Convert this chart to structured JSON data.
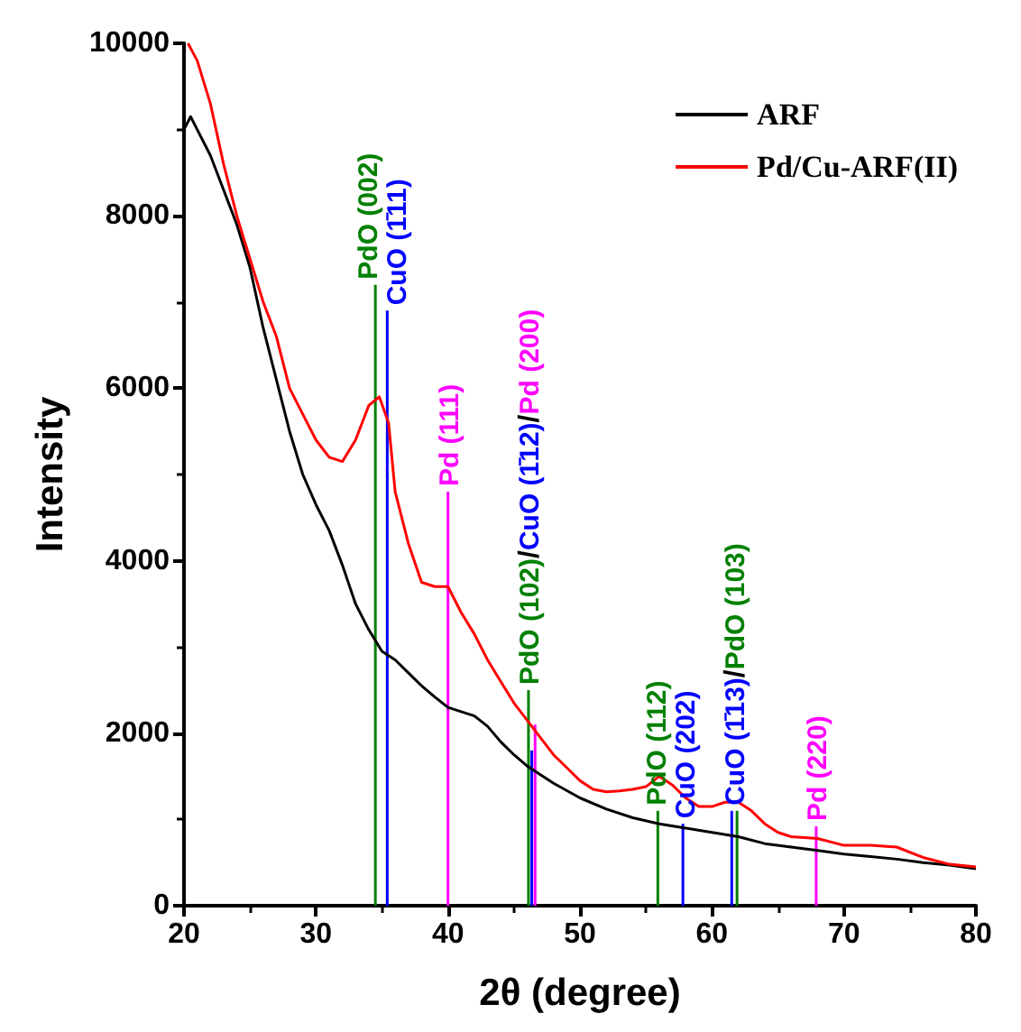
{
  "chart_data": {
    "type": "line",
    "xlabel": "2θ (degree)",
    "ylabel": "Intensity",
    "xlim": [
      20,
      80
    ],
    "xticks": [
      20,
      30,
      40,
      50,
      60,
      70,
      80
    ],
    "ylim": [
      0,
      10000
    ],
    "yticks": [
      0,
      {
        "value": 2000,
        "label": "2000"
      },
      {
        "value": 4000,
        "label": "4000"
      },
      {
        "value": 6000,
        "label": "6000"
      },
      {
        "value": 8000,
        "label": "8000"
      },
      {
        "value": 10000,
        "label": "10000"
      }
    ],
    "grid": false,
    "legend": "top right",
    "marker": "none",
    "line_style": "solid",
    "series": [
      {
        "name": "ARF",
        "color": "#000000",
        "x": [
          20,
          20.5,
          21,
          22,
          23,
          24,
          25,
          26,
          27,
          28,
          29,
          30,
          31,
          32,
          33,
          34,
          35,
          36,
          37,
          38,
          39,
          40,
          41,
          42,
          43,
          44,
          45,
          46,
          47,
          48,
          50,
          52,
          54,
          56,
          58,
          60,
          62,
          64,
          66,
          68,
          70,
          72,
          74,
          76,
          78,
          80
        ],
        "values": [
          9000,
          9150,
          9000,
          8700,
          8300,
          7900,
          7400,
          6700,
          6100,
          5500,
          5000,
          4650,
          4350,
          3950,
          3500,
          3200,
          2950,
          2850,
          2700,
          2550,
          2420,
          2300,
          2250,
          2200,
          2080,
          1900,
          1750,
          1620,
          1520,
          1420,
          1250,
          1120,
          1020,
          950,
          900,
          850,
          800,
          720,
          680,
          640,
          600,
          570,
          540,
          500,
          470,
          430
        ]
      },
      {
        "name": "Pd/Cu-ARF(II)",
        "color": "#ff0000",
        "x": [
          20.3,
          21,
          22,
          23,
          24,
          25,
          26,
          27,
          28,
          29,
          30,
          31,
          32,
          33,
          34,
          34.8,
          35.5,
          36,
          37,
          38,
          39,
          40,
          41,
          42,
          43,
          44,
          45,
          46,
          47,
          48,
          49,
          50,
          51,
          52,
          53,
          54,
          55,
          56,
          57,
          58,
          59,
          60,
          61,
          62,
          63,
          64,
          65,
          66,
          68,
          70,
          72,
          74,
          76,
          78,
          80
        ],
        "values": [
          10000,
          9800,
          9300,
          8600,
          8000,
          7500,
          7000,
          6600,
          6000,
          5700,
          5400,
          5200,
          5150,
          5400,
          5800,
          5900,
          5600,
          4800,
          4200,
          3750,
          3700,
          3700,
          3400,
          3150,
          2850,
          2600,
          2350,
          2150,
          1950,
          1750,
          1600,
          1450,
          1350,
          1320,
          1330,
          1350,
          1380,
          1500,
          1400,
          1250,
          1150,
          1150,
          1200,
          1200,
          1100,
          950,
          850,
          800,
          780,
          700,
          700,
          680,
          560,
          480,
          450
        ]
      },
      {
        "type": "bar",
        "color": "#008000",
        "x": [
          34.5,
          46.1,
          55.9,
          61.9
        ],
        "values": [
          7200,
          2500,
          1100,
          1100
        ]
      },
      {
        "type": "bar",
        "color": "#0000ff",
        "x": [
          35.4,
          46.35,
          57.8,
          61.5
        ],
        "values": [
          6900,
          1800,
          950,
          1100
        ]
      },
      {
        "type": "bar",
        "color": "#ff00ff",
        "x": [
          40.0,
          46.6,
          67.9
        ],
        "values": [
          4800,
          2100,
          920
        ]
      }
    ],
    "annotations": [
      {
        "text": "PdO (002)",
        "x": 34.5,
        "y": 7200
      },
      {
        "text": "CuO (1̄11)",
        "x": 35.4,
        "y": 6900
      },
      {
        "text": "Pd (111)",
        "x": 40.0,
        "y": 4800
      },
      {
        "text": "PdO (102)/CuO (1̄12)/Pd (200)",
        "x": 46.1,
        "y": 2500
      },
      {
        "text": "PdO (112)",
        "x": 55.9,
        "y": 1100
      },
      {
        "text": "CuO (202)",
        "x": 57.8,
        "y": 950
      },
      {
        "text": "CuO (1̄13)/PdO (103)",
        "x": 61.7,
        "y": 1100
      },
      {
        "text": "Pd (220)",
        "x": 67.9,
        "y": 920
      }
    ]
  }
}
